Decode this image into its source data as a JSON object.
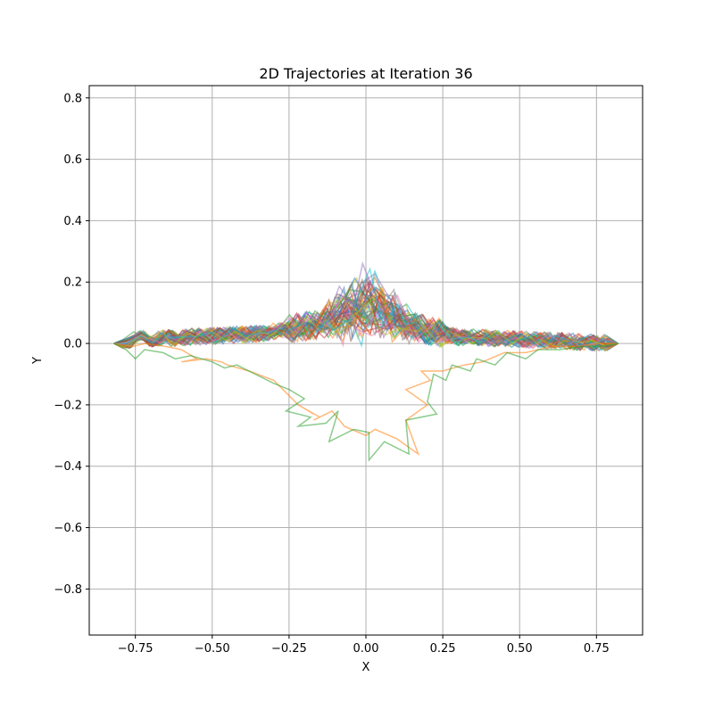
{
  "chart_data": {
    "type": "line",
    "title": "2D Trajectories at Iteration 36",
    "xlabel": "X",
    "ylabel": "Y",
    "xlim": [
      -0.9,
      0.9
    ],
    "ylim": [
      -0.95,
      0.84
    ],
    "grid": true,
    "legend": "none",
    "x_ticks": [
      -0.75,
      -0.5,
      -0.25,
      0.0,
      0.25,
      0.5,
      0.75
    ],
    "x_tick_labels": [
      "−0.75",
      "−0.50",
      "−0.25",
      "0.00",
      "0.25",
      "0.50",
      "0.75"
    ],
    "y_ticks": [
      0.8,
      0.6,
      0.4,
      0.2,
      0.0,
      -0.2,
      -0.4,
      -0.6,
      -0.8
    ],
    "y_tick_labels": [
      "0.8",
      "0.6",
      "0.4",
      "0.2",
      "0.0",
      "−0.2",
      "−0.4",
      "−0.6",
      "−0.8"
    ],
    "start_point": [
      -0.82,
      0.0
    ],
    "end_point": [
      0.82,
      0.0
    ],
    "series_colors": [
      "#1f77b4",
      "#ff7f0e",
      "#2ca02c",
      "#d62728",
      "#9467bd",
      "#8c564b",
      "#e377c2",
      "#7f7f7f",
      "#bcbd22",
      "#17becf"
    ],
    "series": [
      {
        "color": "#ff7f0e",
        "points": [
          [
            -0.82,
            0.0
          ],
          [
            -0.76,
            -0.01
          ],
          [
            -0.72,
            0.0
          ],
          [
            -0.65,
            -0.01
          ],
          [
            -0.6,
            -0.02
          ],
          [
            -0.55,
            -0.05
          ],
          [
            -0.6,
            -0.06
          ],
          [
            -0.52,
            -0.05
          ],
          [
            -0.47,
            -0.06
          ],
          [
            -0.45,
            -0.07
          ],
          [
            -0.38,
            -0.09
          ],
          [
            -0.3,
            -0.12
          ],
          [
            -0.27,
            -0.15
          ],
          [
            -0.22,
            -0.2
          ],
          [
            -0.17,
            -0.23
          ],
          [
            -0.22,
            -0.2
          ],
          [
            -0.15,
            -0.24
          ],
          [
            -0.17,
            -0.25
          ],
          [
            -0.11,
            -0.22
          ],
          [
            -0.07,
            -0.27
          ],
          [
            0.0,
            -0.3
          ],
          [
            0.03,
            -0.28
          ],
          [
            0.1,
            -0.31
          ],
          [
            0.17,
            -0.36
          ],
          [
            0.13,
            -0.25
          ],
          [
            0.2,
            -0.2
          ],
          [
            0.13,
            -0.15
          ],
          [
            0.21,
            -0.12
          ],
          [
            0.18,
            -0.09
          ],
          [
            0.25,
            -0.09
          ],
          [
            0.32,
            -0.07
          ],
          [
            0.38,
            -0.06
          ],
          [
            0.45,
            -0.03
          ],
          [
            0.52,
            -0.03
          ],
          [
            0.6,
            -0.01
          ],
          [
            0.68,
            -0.01
          ],
          [
            0.76,
            0.0
          ],
          [
            0.82,
            0.0
          ]
        ]
      },
      {
        "color": "#2ca02c",
        "points": [
          [
            -0.82,
            0.0
          ],
          [
            -0.78,
            -0.02
          ],
          [
            -0.75,
            -0.05
          ],
          [
            -0.72,
            -0.02
          ],
          [
            -0.66,
            -0.03
          ],
          [
            -0.62,
            -0.05
          ],
          [
            -0.57,
            -0.04
          ],
          [
            -0.5,
            -0.06
          ],
          [
            -0.46,
            -0.08
          ],
          [
            -0.42,
            -0.07
          ],
          [
            -0.36,
            -0.1
          ],
          [
            -0.3,
            -0.13
          ],
          [
            -0.25,
            -0.15
          ],
          [
            -0.2,
            -0.18
          ],
          [
            -0.26,
            -0.22
          ],
          [
            -0.18,
            -0.24
          ],
          [
            -0.22,
            -0.27
          ],
          [
            -0.13,
            -0.26
          ],
          [
            -0.09,
            -0.22
          ],
          [
            -0.12,
            -0.32
          ],
          [
            -0.04,
            -0.28
          ],
          [
            0.01,
            -0.29
          ],
          [
            0.01,
            -0.38
          ],
          [
            0.06,
            -0.32
          ],
          [
            0.14,
            -0.36
          ],
          [
            0.13,
            -0.25
          ],
          [
            0.23,
            -0.23
          ],
          [
            0.2,
            -0.19
          ],
          [
            0.22,
            -0.1
          ],
          [
            0.26,
            -0.12
          ],
          [
            0.28,
            -0.07
          ],
          [
            0.34,
            -0.09
          ],
          [
            0.36,
            -0.05
          ],
          [
            0.42,
            -0.07
          ],
          [
            0.46,
            -0.03
          ],
          [
            0.52,
            -0.05
          ],
          [
            0.56,
            -0.02
          ],
          [
            0.63,
            -0.02
          ],
          [
            0.7,
            -0.01
          ],
          [
            0.77,
            -0.01
          ],
          [
            0.82,
            0.0
          ]
        ]
      }
    ]
  }
}
